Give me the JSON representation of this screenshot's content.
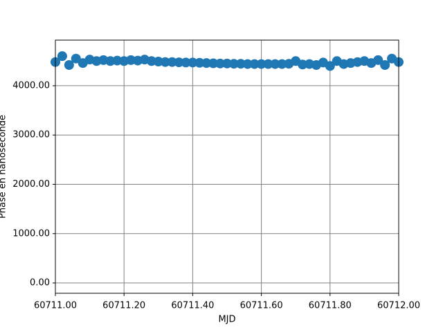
{
  "chart_data": {
    "type": "scatter",
    "x_label": "MJD",
    "y_label": "Phase en nanoseconde",
    "color": "#1f77b4",
    "grid": true,
    "xlim": [
      60711.0,
      60712.0
    ],
    "xticks": [
      {
        "value": 60711.0,
        "label": "60711.00"
      },
      {
        "value": 60711.2,
        "label": "60711.20"
      },
      {
        "value": 60711.4,
        "label": "60711.40"
      },
      {
        "value": 60711.6,
        "label": "60711.60"
      },
      {
        "value": 60711.8,
        "label": "60711.80"
      },
      {
        "value": 60712.0,
        "label": "60712.00"
      }
    ],
    "ylim": [
      -210,
      4925
    ],
    "yticks": [
      {
        "value": 0,
        "label": "0.00"
      },
      {
        "value": 1000,
        "label": "1000.00"
      },
      {
        "value": 2000,
        "label": "2000.00"
      },
      {
        "value": 3000,
        "label": "3000.00"
      },
      {
        "value": 4000,
        "label": "4000.00"
      }
    ],
    "x": [
      60711.0,
      60711.02,
      60711.04,
      60711.06,
      60711.08,
      60711.1,
      60711.12,
      60711.14,
      60711.16,
      60711.18,
      60711.2,
      60711.22,
      60711.24,
      60711.26,
      60711.28,
      60711.3,
      60711.32,
      60711.34,
      60711.36,
      60711.38,
      60711.4,
      60711.42,
      60711.44,
      60711.46,
      60711.48,
      60711.5,
      60711.52,
      60711.54,
      60711.56,
      60711.58,
      60711.6,
      60711.62,
      60711.64,
      60711.66,
      60711.68,
      60711.7,
      60711.72,
      60711.74,
      60711.76,
      60711.78,
      60711.8,
      60711.82,
      60711.84,
      60711.86,
      60711.88,
      60711.9,
      60711.92,
      60711.94,
      60711.96,
      60711.98,
      60712.0
    ],
    "values": [
      4480,
      4600,
      4420,
      4550,
      4460,
      4530,
      4500,
      4520,
      4500,
      4510,
      4500,
      4520,
      4510,
      4530,
      4500,
      4490,
      4480,
      4480,
      4475,
      4470,
      4470,
      4465,
      4460,
      4455,
      4450,
      4450,
      4445,
      4445,
      4440,
      4440,
      4440,
      4440,
      4440,
      4440,
      4445,
      4500,
      4430,
      4440,
      4420,
      4470,
      4400,
      4500,
      4440,
      4460,
      4480,
      4500,
      4460,
      4520,
      4420,
      4550,
      4480
    ]
  }
}
